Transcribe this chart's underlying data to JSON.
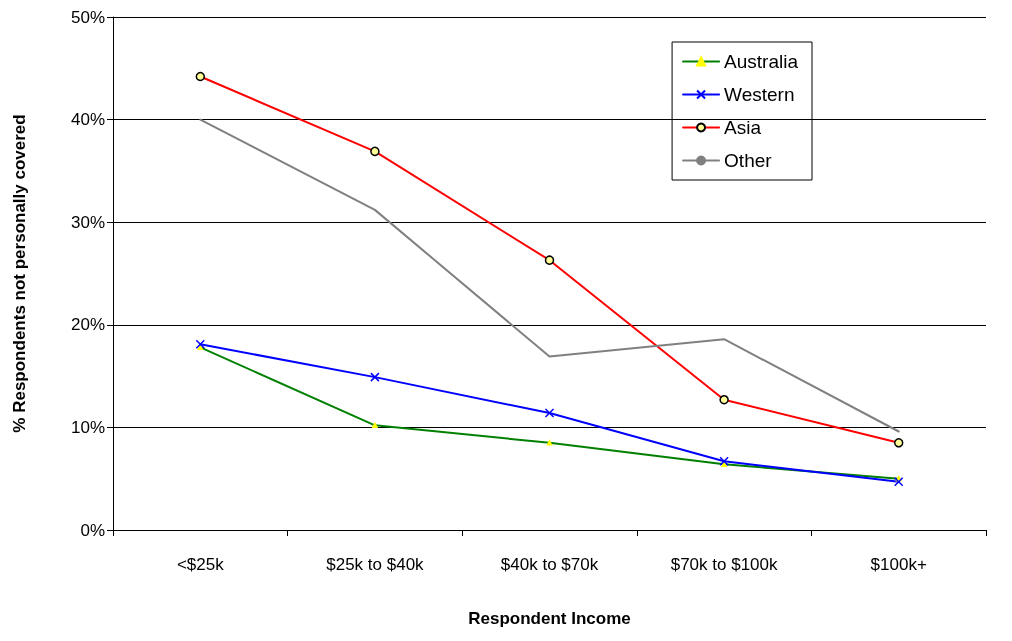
{
  "chart_data": {
    "type": "line",
    "xlabel": "Respondent Income",
    "ylabel": "% Respondents not personally covered",
    "categories": [
      "<$25k",
      "$25k to $40k",
      "$40k to $70k",
      "$70k to $100k",
      "$100k+"
    ],
    "series": [
      {
        "name": "Australia",
        "color": "#008000",
        "marker": "triangle",
        "values": [
          17.8,
          10.2,
          8.5,
          6.4,
          5.0
        ]
      },
      {
        "name": "Western",
        "color": "#0000ff",
        "marker": "cross",
        "values": [
          18.1,
          14.9,
          11.4,
          6.7,
          4.7
        ]
      },
      {
        "name": "Asia",
        "color": "#ff0000",
        "marker": "circle",
        "values": [
          44.2,
          36.9,
          26.3,
          12.7,
          8.5
        ]
      },
      {
        "name": "Other",
        "color": "#808080",
        "marker": "none",
        "values": [
          40.0,
          31.2,
          16.9,
          18.6,
          9.6
        ]
      }
    ],
    "ylim": [
      0,
      50
    ],
    "yticks": [
      {
        "value": 0,
        "label": "0%"
      },
      {
        "value": 10,
        "label": "10%"
      },
      {
        "value": 20,
        "label": "20%"
      },
      {
        "value": 30,
        "label": "30%"
      },
      {
        "value": 40,
        "label": "40%"
      },
      {
        "value": 50,
        "label": "50%"
      }
    ],
    "grid": "y",
    "legend": "top right",
    "line_style": "solid"
  }
}
